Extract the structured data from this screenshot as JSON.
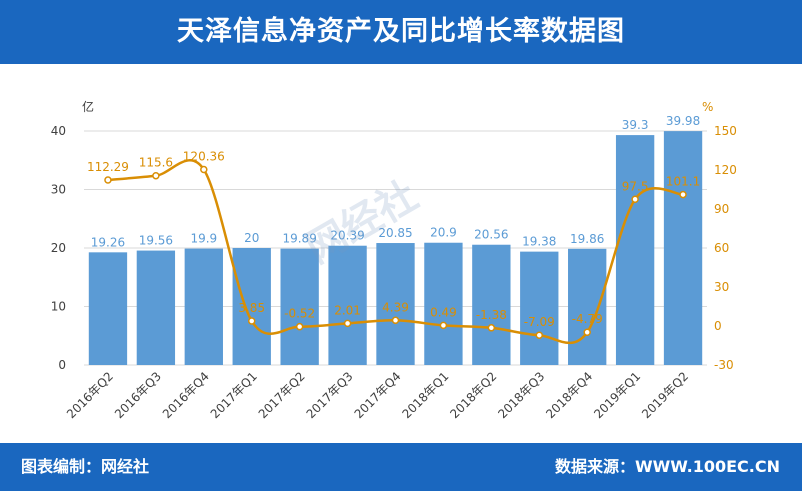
{
  "header": {
    "title": "天泽信息净资产及同比增长率数据图"
  },
  "footer": {
    "credit": "图表编制：网经社",
    "source": "数据来源：WWW.100EC.CN"
  },
  "watermark": {
    "text": "网经社"
  },
  "colors": {
    "brand": "#1a67bf",
    "bar": "#5b9bd5",
    "line": "#d98e04",
    "axis_text": "#404040",
    "right_axis_text": "#d98e04",
    "gridline": "#d9d9d9"
  },
  "chart_data": {
    "type": "bar",
    "categories": [
      "2016年Q2",
      "2016年Q3",
      "2016年Q4",
      "2017年Q1",
      "2017年Q2",
      "2017年Q3",
      "2017年Q4",
      "2018年Q1",
      "2018年Q2",
      "2018年Q3",
      "2018年Q4",
      "2019年Q1",
      "2019年Q2"
    ],
    "series": [
      {
        "type": "bar",
        "axis": "left",
        "values": [
          19.26,
          19.56,
          19.9,
          20,
          19.89,
          20.39,
          20.85,
          20.9,
          20.56,
          19.38,
          19.86,
          39.3,
          39.98
        ],
        "labels": [
          "19.26",
          "19.56",
          "19.9",
          "20",
          "19.89",
          "20.39",
          "20.85",
          "20.9",
          "20.56",
          "19.38",
          "19.86",
          "39.3",
          "39.98"
        ]
      },
      {
        "type": "line",
        "axis": "right",
        "values": [
          112.29,
          115.6,
          120.36,
          3.85,
          -0.52,
          2.01,
          4.39,
          0.49,
          -1.38,
          -7.09,
          -4.79,
          97.5,
          101.1
        ],
        "labels": [
          "112.29",
          "115.6",
          "120.36",
          "3.85",
          "-0.52",
          "2.01",
          "4.39",
          "0.49",
          "-1.38",
          "-7.09",
          "-4.79",
          "97.5",
          "101.1"
        ]
      }
    ],
    "y_left": {
      "unit": "亿",
      "min": 0,
      "max": 40,
      "ticks": [
        0,
        10,
        20,
        30,
        40
      ]
    },
    "y_right": {
      "unit": "%",
      "min": -30,
      "max": 150,
      "ticks": [
        -30,
        0,
        30,
        60,
        90,
        120,
        150
      ]
    },
    "grid": true,
    "legend": "none"
  }
}
